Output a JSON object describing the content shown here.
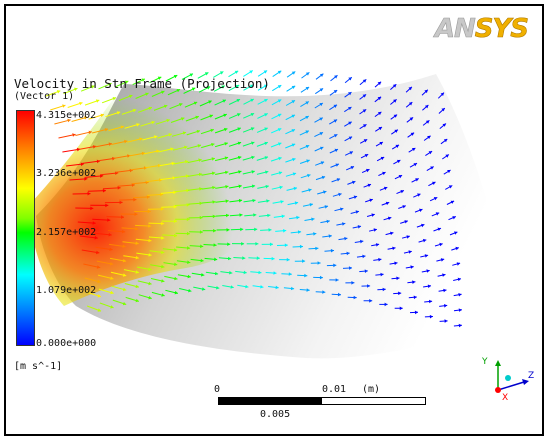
{
  "brand": {
    "prefix": "AN",
    "suffix": "SYS"
  },
  "legend": {
    "title": "Velocity in Stn Frame (Projection)",
    "subtitle": "(Vector 1)",
    "ticks": [
      "4.315e+002",
      "3.236e+002",
      "2.157e+002",
      "1.079e+002",
      "0.000e+000"
    ],
    "unit": "[m s^-1]",
    "colors": {
      "max": "#ff0000",
      "high": "#ffff00",
      "mid": "#00ff00",
      "low": "#00ffff",
      "min": "#0000ff"
    }
  },
  "scale": {
    "zero": "0",
    "end": "0.01",
    "unit": "(m)",
    "mid": "0.005"
  },
  "axes": {
    "y": "Y",
    "z": "Z",
    "x": "X"
  },
  "colors": {
    "frame": "#000000",
    "surface": "#b8b8b8"
  }
}
